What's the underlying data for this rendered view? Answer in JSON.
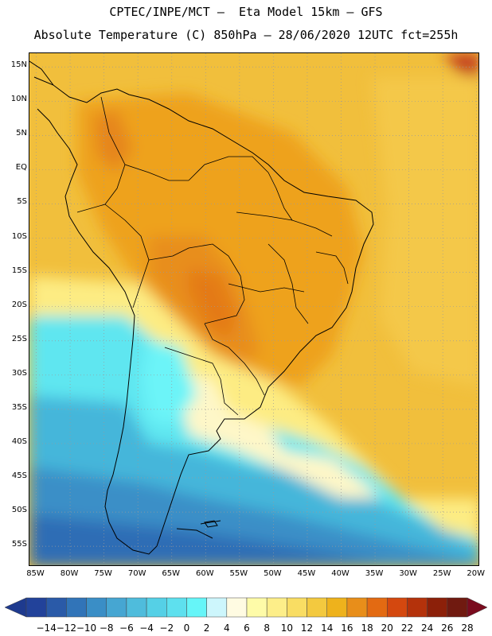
{
  "header": {
    "title_line1": "CPTEC/INPE/MCT –  Eta Model 15km – GFS",
    "title_line2": "Absolute Temperature (C) 850hPa – 28/06/2020 12UTC fct=255h"
  },
  "map": {
    "lat_labels": [
      "15N",
      "10N",
      "5N",
      "EQ",
      "5S",
      "10S",
      "15S",
      "20S",
      "25S",
      "30S",
      "35S",
      "40S",
      "45S",
      "50S",
      "55S"
    ],
    "lon_labels": [
      "85W",
      "80W",
      "75W",
      "70W",
      "65W",
      "60W",
      "55W",
      "50W",
      "45W",
      "40W",
      "35W",
      "30W",
      "25W",
      "20W"
    ],
    "extent": {
      "lon_min": -86,
      "lon_max": -19.5,
      "lat_min": -58,
      "lat_max": 17
    },
    "gridlines": true
  },
  "colorbar": {
    "labels": [
      "-14",
      "-12",
      "-10",
      "-8",
      "-6",
      "-4",
      "-2",
      "0",
      "2",
      "4",
      "6",
      "8",
      "10",
      "12",
      "14",
      "16",
      "18",
      "20",
      "22",
      "24",
      "26",
      "28"
    ],
    "colors": [
      "#22429a",
      "#2a5aa8",
      "#3174b8",
      "#3a8ec6",
      "#46a6d2",
      "#4fbcdc",
      "#55d0e6",
      "#5ee0ee",
      "#66f5f8",
      "#cdf6fc",
      "#fffbe2",
      "#fefba8",
      "#fdee89",
      "#f9dd63",
      "#f3c93f",
      "#eeb21c",
      "#e88e1a",
      "#e36a12",
      "#d4480f",
      "#b4320b",
      "#8c2009",
      "#701a10"
    ],
    "low_extend_color": "#1e3a8e",
    "high_extend_color": "#7a0b1e"
  }
}
